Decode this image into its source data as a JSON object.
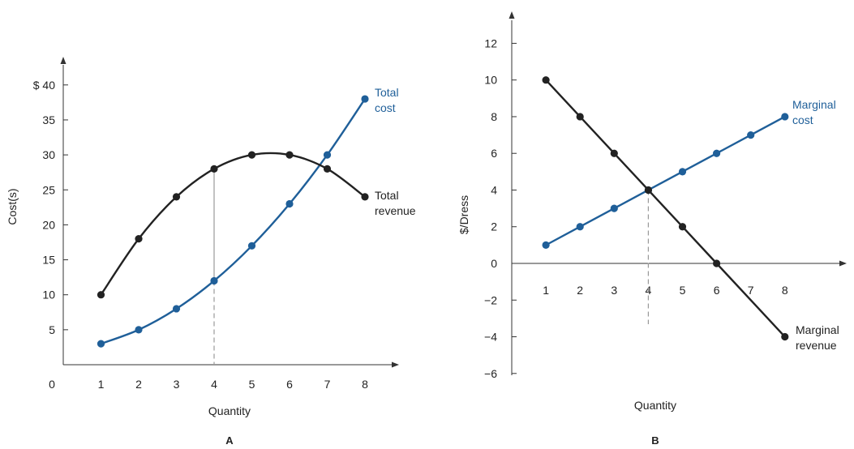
{
  "colors": {
    "black_series": "#222222",
    "blue_series": "#1f5f99",
    "axis": "#333333",
    "guide": "#999999"
  },
  "chart_data": [
    {
      "type": "line",
      "panel_label": "A",
      "xlabel": "Quantity",
      "ylabel": "Cost(s)",
      "origin_label": "0",
      "xlim": [
        0,
        9
      ],
      "ylim": [
        0,
        43
      ],
      "x_ticks": [
        1,
        2,
        3,
        4,
        5,
        6,
        7,
        8
      ],
      "y_ticks": [
        5,
        10,
        15,
        20,
        25,
        30,
        35,
        40
      ],
      "y_tick_labels": [
        "5",
        "10",
        "15",
        "20",
        "25",
        "30",
        "35",
        "$ 40"
      ],
      "x": [
        1,
        2,
        3,
        4,
        5,
        6,
        7,
        8
      ],
      "series": [
        {
          "name": "Total cost",
          "label_lines": [
            "Total",
            "cost"
          ],
          "color_key": "blue_series",
          "values": [
            3,
            5,
            8,
            12,
            17,
            23,
            30,
            38
          ]
        },
        {
          "name": "Total revenue",
          "label_lines": [
            "Total",
            "revenue"
          ],
          "color_key": "black_series",
          "values": [
            10,
            18,
            24,
            28,
            30,
            30,
            28,
            24
          ]
        }
      ],
      "guide_x": 4
    },
    {
      "type": "line",
      "panel_label": "B",
      "xlabel": "Quantity",
      "ylabel": "$/Dress",
      "xlim": [
        0,
        9
      ],
      "ylim": [
        -6,
        14
      ],
      "x_ticks": [
        1,
        2,
        3,
        4,
        5,
        6,
        7,
        8
      ],
      "y_ticks": [
        -6,
        -4,
        -2,
        0,
        2,
        4,
        6,
        8,
        10,
        12
      ],
      "y_tick_labels": [
        "−6",
        "−4",
        "−2",
        "0",
        "2",
        "4",
        "6",
        "8",
        "10",
        "12"
      ],
      "x": [
        1,
        2,
        3,
        4,
        5,
        6,
        7,
        8
      ],
      "series": [
        {
          "name": "Marginal cost",
          "label_lines": [
            "Marginal",
            "cost"
          ],
          "color_key": "blue_series",
          "values": [
            1,
            2,
            3,
            4,
            5,
            6,
            7,
            8
          ]
        },
        {
          "name": "Marginal revenue",
          "label_lines": [
            "Marginal",
            "revenue"
          ],
          "color_key": "black_series",
          "values": [
            10,
            8,
            6,
            4,
            2,
            0,
            null,
            -4
          ]
        }
      ],
      "guide_x": 4
    }
  ]
}
